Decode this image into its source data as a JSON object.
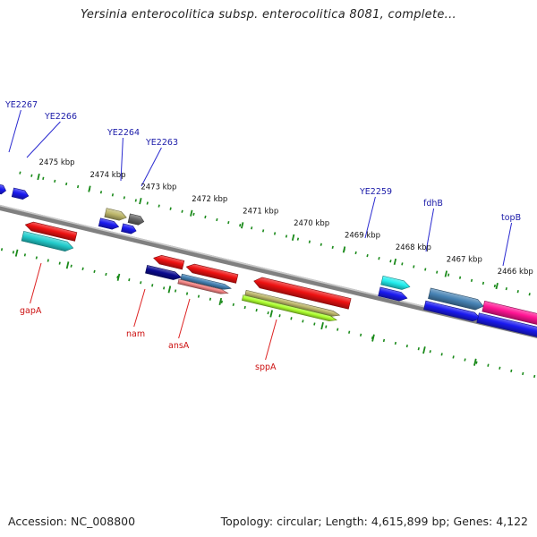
{
  "title": "Yersinia enterocolitica subsp. enterocolitica 8081, complete...",
  "footer": {
    "accession": "Accession: NC_008800",
    "summary": "Topology: circular; Length: 4,615,899 bp; Genes: 4,122"
  },
  "colors": {
    "backbone": "#808080",
    "tick": "#1a8a1a",
    "label_top": "#1a1aa8",
    "label_bottom": "#cc1111",
    "leader_top": "#2a2ad0",
    "leader_bottom": "#dd2222"
  },
  "scale": {
    "ticks": [
      {
        "label": "2475 kbp"
      },
      {
        "label": "2474 kbp"
      },
      {
        "label": "2473 kbp"
      },
      {
        "label": "2472 kbp"
      },
      {
        "label": "2471 kbp"
      },
      {
        "label": "2470 kbp"
      },
      {
        "label": "2469 kbp"
      },
      {
        "label": "2468 kbp"
      },
      {
        "label": "2467 kbp"
      },
      {
        "label": "2466 kbp"
      }
    ]
  },
  "genes": [
    {
      "name": "",
      "color": "#1a1af0",
      "strand": "+"
    },
    {
      "name": "",
      "color": "#1a1af0",
      "strand": "+"
    },
    {
      "name": "gapA",
      "color": "#ee1111",
      "strand": "-"
    },
    {
      "name": "",
      "color": "#22cccc",
      "strand": "+"
    },
    {
      "name": "",
      "color": "#bdb76b",
      "strand": "+"
    },
    {
      "name": "",
      "color": "#666666",
      "strand": "+"
    },
    {
      "name": "",
      "color": "#1a1af0",
      "strand": "+"
    },
    {
      "name": "",
      "color": "#1a1af0",
      "strand": "+"
    },
    {
      "name": "nam",
      "color": "#ee1111",
      "strand": "-"
    },
    {
      "name": "",
      "color": "#0a0a90",
      "strand": "+"
    },
    {
      "name": "ansA",
      "color": "#ee1111",
      "strand": "-"
    },
    {
      "name": "",
      "color": "#4682b4",
      "strand": "+"
    },
    {
      "name": "",
      "color": "#f08080",
      "strand": "+"
    },
    {
      "name": "sppA",
      "color": "#ee1111",
      "strand": "-"
    },
    {
      "name": "",
      "color": "#bdb76b",
      "strand": "+"
    },
    {
      "name": "",
      "color": "#adff2f",
      "strand": "+"
    },
    {
      "name": "",
      "color": "#22eeee",
      "strand": "+"
    },
    {
      "name": "",
      "color": "#1a1af0",
      "strand": "+"
    },
    {
      "name": "",
      "color": "#4682b4",
      "strand": "+"
    },
    {
      "name": "",
      "color": "#1a1af0",
      "strand": "+"
    },
    {
      "name": "",
      "color": "#ff1493",
      "strand": "+"
    },
    {
      "name": "",
      "color": "#1a1af0",
      "strand": "+"
    }
  ],
  "labels_top": [
    {
      "text": "YE2267"
    },
    {
      "text": "YE2266"
    },
    {
      "text": "YE2264"
    },
    {
      "text": "YE2263"
    },
    {
      "text": "YE2259"
    },
    {
      "text": "fdhB"
    },
    {
      "text": "topB"
    }
  ],
  "labels_bottom": [
    {
      "text": "gapA"
    },
    {
      "text": "nam"
    },
    {
      "text": "ansA"
    },
    {
      "text": "sppA"
    }
  ]
}
